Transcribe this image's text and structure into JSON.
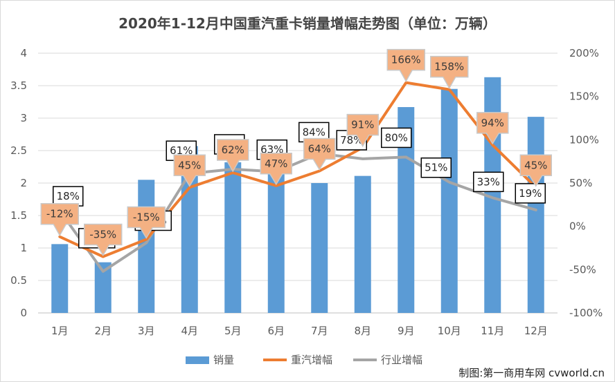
{
  "chart_data": {
    "type": "bar",
    "title": "2020年1-12月中国重汽重卡销量增幅走势图（单位：万辆）",
    "categories": [
      "1月",
      "2月",
      "3月",
      "4月",
      "5月",
      "6月",
      "7月",
      "8月",
      "9月",
      "10月",
      "11月",
      "12月"
    ],
    "y_left": {
      "min": 0,
      "max": 4,
      "step": 0.5,
      "tick_labels": [
        "0",
        "0.5",
        "1",
        "1.5",
        "2",
        "2.5",
        "3",
        "3.5",
        "4"
      ]
    },
    "y_right": {
      "min": -100,
      "max": 200,
      "step": 50,
      "tick_labels": [
        "-100%",
        "-50%",
        "0%",
        "50%",
        "100%",
        "150%",
        "200%"
      ]
    },
    "grid": true,
    "legend_position": "bottom",
    "series": [
      {
        "name": "销量",
        "type": "bar",
        "axis": "left",
        "color": "#5B9BD5",
        "values": [
          1.06,
          0.78,
          2.05,
          2.57,
          2.32,
          2.48,
          2.0,
          2.11,
          3.17,
          3.45,
          3.63,
          3.02
        ]
      },
      {
        "name": "重汽增幅",
        "type": "line",
        "axis": "right",
        "color": "#ED7D31",
        "values": [
          -12,
          -35,
          -15,
          45,
          62,
          47,
          64,
          91,
          166,
          158,
          94,
          45
        ],
        "labels": [
          "-12%",
          "-35%",
          "-15%",
          "45%",
          "62%",
          "47%",
          "64%",
          "91%",
          "166%",
          "158%",
          "94%",
          "45%"
        ]
      },
      {
        "name": "行业增幅",
        "type": "line",
        "axis": "right",
        "color": "#A5A5A5",
        "values": [
          18,
          -52,
          -19,
          61,
          66,
          63,
          84,
          78,
          80,
          51,
          33,
          19
        ],
        "labels": [
          "18%",
          "-52%",
          "-19%",
          "61%",
          "66%",
          "63%",
          "84%",
          "78%",
          "80%",
          "51%",
          "33%",
          "19%"
        ]
      }
    ]
  },
  "credit": "制图:第一商用车网 cvworld.cn"
}
